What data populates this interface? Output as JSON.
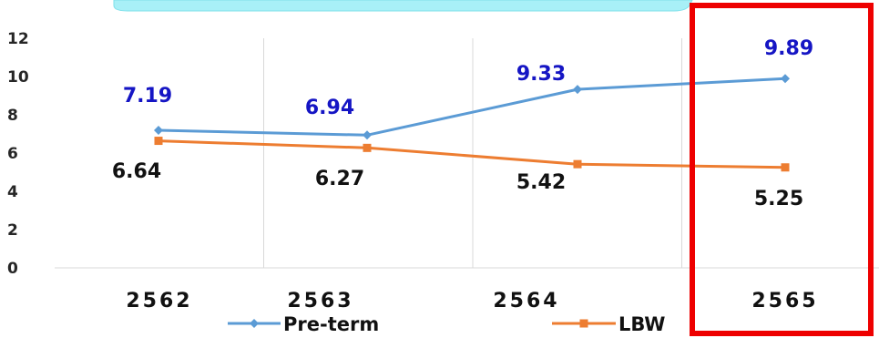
{
  "chart_data": {
    "type": "line",
    "categories": [
      "2562",
      "2563",
      "2564",
      "2565"
    ],
    "ylim": [
      0,
      12
    ],
    "yticks": [
      "0",
      "2",
      "4",
      "6",
      "8",
      "10",
      "12"
    ],
    "grid": "vertical",
    "legend_position": "bottom",
    "series": [
      {
        "name": "Pre-term",
        "values": [
          7.19,
          6.94,
          9.33,
          9.89
        ],
        "labels": [
          "7.19",
          "6.94",
          "9.33",
          "9.89"
        ],
        "color": "#5b9bd5",
        "label_color": "#1515c4"
      },
      {
        "name": "LBW",
        "values": [
          6.64,
          6.27,
          5.42,
          5.25
        ],
        "labels": [
          "6.64",
          "6.27",
          "5.42",
          "5.25"
        ],
        "color": "#ed7d31",
        "label_color": "#111111"
      }
    ],
    "highlight": {
      "category": "2565",
      "color": "#ee0000"
    },
    "top_banner_color": "#a8f0f7"
  }
}
